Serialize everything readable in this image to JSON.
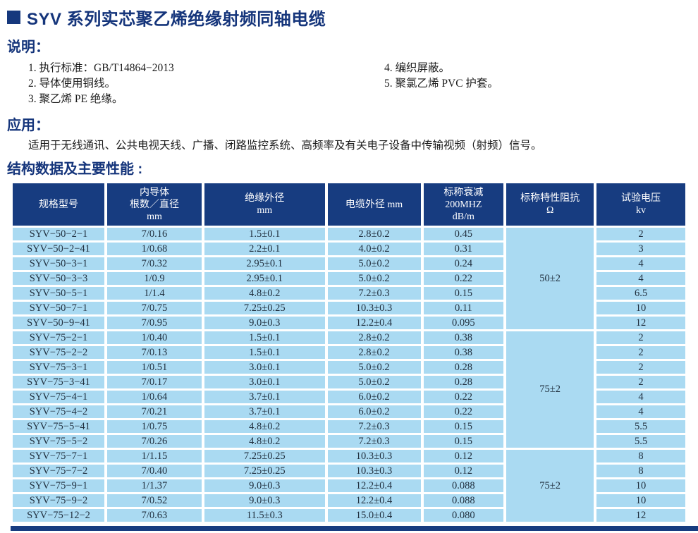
{
  "page": {
    "title": "SYV 系列实芯聚乙烯绝缘射频同轴电缆"
  },
  "colors": {
    "navy": "#173c80",
    "row_blue": "#aadaf2"
  },
  "description": {
    "heading": "说明：",
    "items_left": [
      "1. 执行标准：GB/T14864−2013",
      "2. 导体使用铜线。",
      "3. 聚乙烯 PE 绝缘。"
    ],
    "items_right": [
      "4. 编织屏蔽。",
      "5. 聚氯乙烯 PVC 护套。"
    ]
  },
  "application": {
    "heading": "应用：",
    "text": "适用于无线通讯、公共电视天线、广播、闭路监控系统、高频率及有关电子设备中传输视频（射频）信号。"
  },
  "table_section": {
    "heading": "结构数据及主要性能 :"
  },
  "table": {
    "headers": [
      {
        "lines": [
          "规格型号"
        ]
      },
      {
        "lines": [
          "内导体",
          "根数／直径",
          "mm"
        ]
      },
      {
        "lines": [
          "绝缘外径",
          "mm"
        ]
      },
      {
        "lines": [
          "电缆外径 mm"
        ]
      },
      {
        "lines": [
          "标称衰减",
          "200MHZ",
          "dB/m"
        ]
      },
      {
        "lines": [
          "标称特性阻抗",
          "Ω"
        ]
      },
      {
        "lines": [
          "试验电压",
          "kv"
        ]
      }
    ],
    "impedance_groups": [
      {
        "value": "50±2",
        "span": 7
      },
      {
        "value": "75±2",
        "span": 8
      },
      {
        "value": "75±2",
        "span": 5
      }
    ],
    "rows": [
      [
        "SYV−50−2−1",
        "7/0.16",
        "1.5±0.1",
        "2.8±0.2",
        "0.45",
        "2"
      ],
      [
        "SYV−50−2−41",
        "1/0.68",
        "2.2±0.1",
        "4.0±0.2",
        "0.31",
        "3"
      ],
      [
        "SYV−50−3−1",
        "7/0.32",
        "2.95±0.1",
        "5.0±0.2",
        "0.24",
        "4"
      ],
      [
        "SYV−50−3−3",
        "1/0.9",
        "2.95±0.1",
        "5.0±0.2",
        "0.22",
        "4"
      ],
      [
        "SYV−50−5−1",
        "1/1.4",
        "4.8±0.2",
        "7.2±0.3",
        "0.15",
        "6.5"
      ],
      [
        "SYV−50−7−1",
        "7/0.75",
        "7.25±0.25",
        "10.3±0.3",
        "0.11",
        "10"
      ],
      [
        "SYV−50−9−41",
        "7/0.95",
        "9.0±0.3",
        "12.2±0.4",
        "0.095",
        "12"
      ],
      [
        "SYV−75−2−1",
        "1/0.40",
        "1.5±0.1",
        "2.8±0.2",
        "0.38",
        "2"
      ],
      [
        "SYV−75−2−2",
        "7/0.13",
        "1.5±0.1",
        "2.8±0.2",
        "0.38",
        "2"
      ],
      [
        "SYV−75−3−1",
        "1/0.51",
        "3.0±0.1",
        "5.0±0.2",
        "0.28",
        "2"
      ],
      [
        "SYV−75−3−41",
        "7/0.17",
        "3.0±0.1",
        "5.0±0.2",
        "0.28",
        "2"
      ],
      [
        "SYV−75−4−1",
        "1/0.64",
        "3.7±0.1",
        "6.0±0.2",
        "0.22",
        "4"
      ],
      [
        "SYV−75−4−2",
        "7/0.21",
        "3.7±0.1",
        "6.0±0.2",
        "0.22",
        "4"
      ],
      [
        "SYV−75−5−41",
        "1/0.75",
        "4.8±0.2",
        "7.2±0.3",
        "0.15",
        "5.5"
      ],
      [
        "SYV−75−5−2",
        "7/0.26",
        "4.8±0.2",
        "7.2±0.3",
        "0.15",
        "5.5"
      ],
      [
        "SYV−75−7−1",
        "1/1.15",
        "7.25±0.25",
        "10.3±0.3",
        "0.12",
        "8"
      ],
      [
        "SYV−75−7−2",
        "7/0.40",
        "7.25±0.25",
        "10.3±0.3",
        "0.12",
        "8"
      ],
      [
        "SYV−75−9−1",
        "1/1.37",
        "9.0±0.3",
        "12.2±0.4",
        "0.088",
        "10"
      ],
      [
        "SYV−75−9−2",
        "7/0.52",
        "9.0±0.3",
        "12.2±0.4",
        "0.088",
        "10"
      ],
      [
        "SYV−75−12−2",
        "7/0.63",
        "11.5±0.3",
        "15.0±0.4",
        "0.080",
        "12"
      ]
    ]
  }
}
